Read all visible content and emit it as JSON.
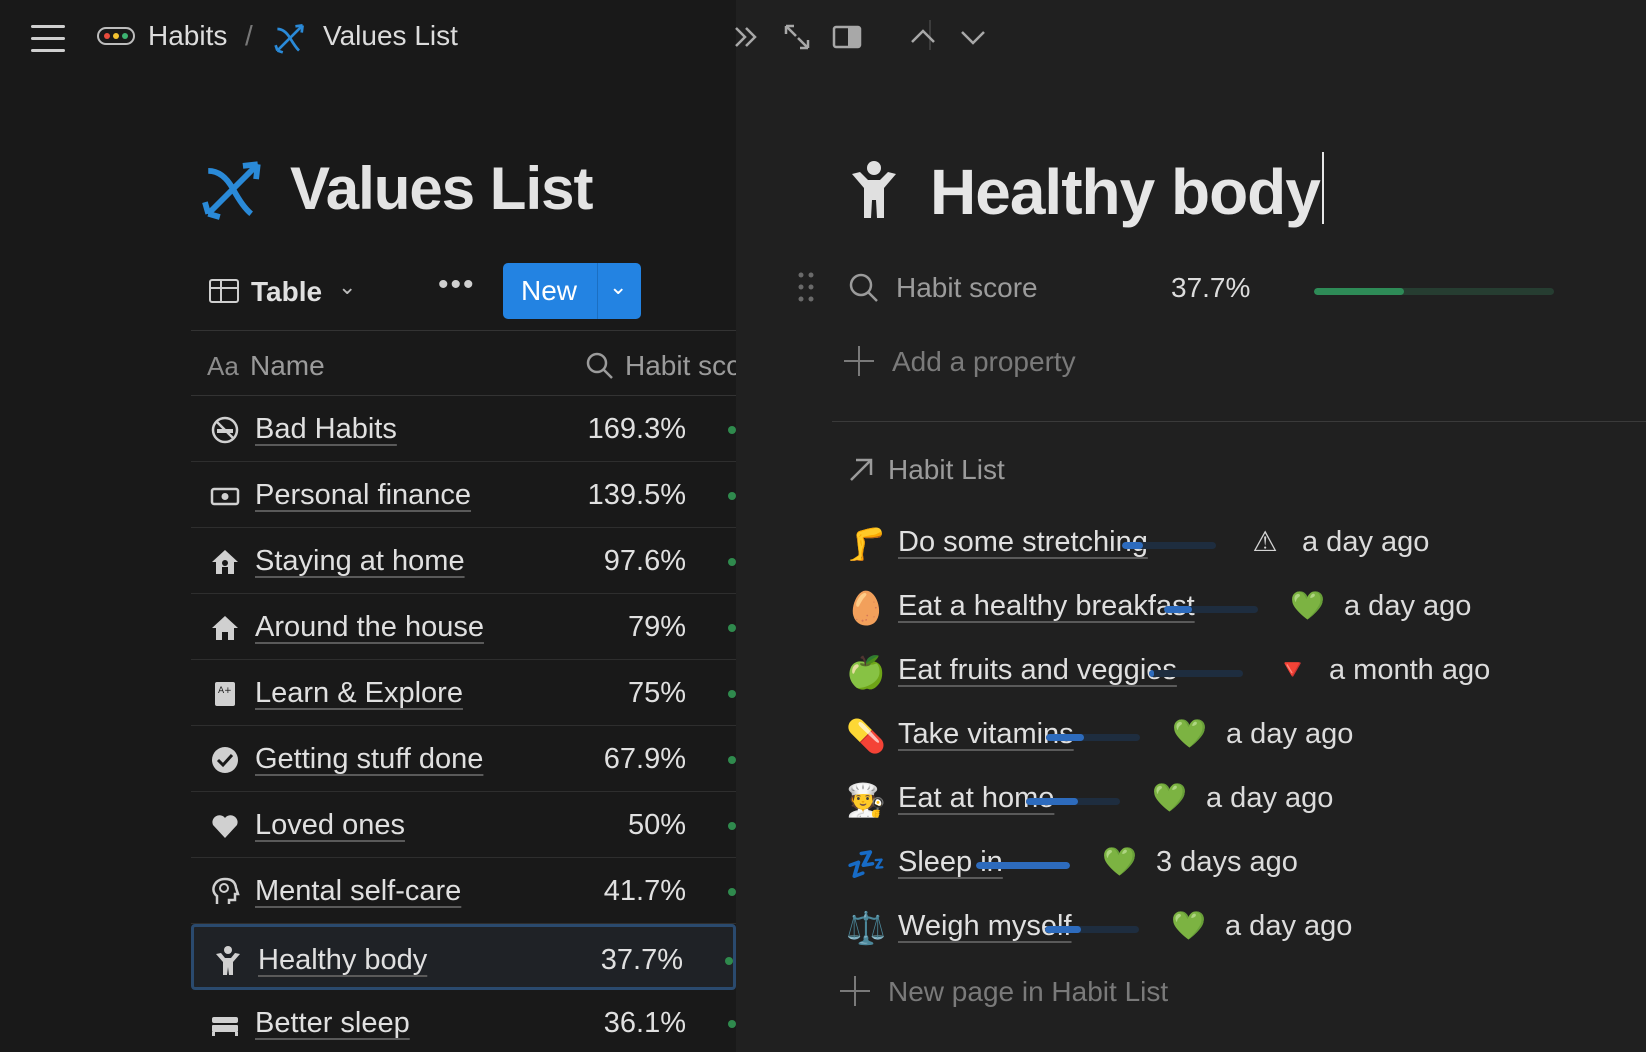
{
  "breadcrumb": {
    "parent": "Habits",
    "separator": "/",
    "current": "Values List"
  },
  "left_page": {
    "title": "Values List",
    "view": {
      "label": "Table",
      "more": "•••",
      "new_label": "New"
    },
    "columns": {
      "name_prefix": "Aa",
      "name": "Name",
      "score": "Habit score"
    },
    "rows": [
      {
        "icon": "no-smoking-icon",
        "name": "Bad Habits",
        "score": "169.3%"
      },
      {
        "icon": "banknote-icon",
        "name": "Personal finance",
        "score": "139.5%"
      },
      {
        "icon": "house-person-icon",
        "name": "Staying at home",
        "score": "97.6%"
      },
      {
        "icon": "house-icon",
        "name": "Around the house",
        "score": "79%"
      },
      {
        "icon": "study-book-icon",
        "name": "Learn & Explore",
        "score": "75%"
      },
      {
        "icon": "checkmark-circle-icon",
        "name": "Getting stuff done",
        "score": "67.9%"
      },
      {
        "icon": "heart-icon",
        "name": "Loved ones",
        "score": "50%"
      },
      {
        "icon": "head-mind-icon",
        "name": "Mental self-care",
        "score": "41.7%"
      },
      {
        "icon": "person-body-icon",
        "name": "Healthy body",
        "score": "37.7%",
        "selected": true
      },
      {
        "icon": "bed-icon",
        "name": "Better sleep",
        "score": "36.1%"
      }
    ]
  },
  "peek": {
    "title": "Healthy body",
    "property": {
      "label": "Habit score",
      "value": "37.7%",
      "progress": 0.377
    },
    "add_property": "Add a property",
    "relation_label": "Habit List",
    "habits": [
      {
        "emoji": "🦵",
        "name": "Do some stretching",
        "progress": 0.22,
        "status_icon": "warning-icon",
        "status": "⚠",
        "when": "a day ago"
      },
      {
        "emoji": "🥚",
        "name": "Eat a healthy breakfast",
        "progress": 0.3,
        "status_icon": "green-heart-icon",
        "status": "💚",
        "when": "a day ago"
      },
      {
        "emoji": "🍏",
        "name": "Eat fruits and veggies",
        "progress": 0.05,
        "status_icon": "red-triangle-down-icon",
        "status": "🔻",
        "when": "a month ago"
      },
      {
        "emoji": "💊",
        "name": "Take vitamins",
        "progress": 0.4,
        "status_icon": "green-heart-icon",
        "status": "💚",
        "when": "a day ago"
      },
      {
        "emoji": "🧑‍🍳",
        "name": "Eat at home",
        "progress": 0.55,
        "status_icon": "green-heart-icon",
        "status": "💚",
        "when": "a day ago"
      },
      {
        "emoji": "💤",
        "name": "Sleep in",
        "progress": 1.0,
        "status_icon": "green-heart-icon",
        "status": "💚",
        "when": "3 days ago"
      },
      {
        "emoji": "⚖️",
        "name": "Weigh myself",
        "progress": 0.38,
        "status_icon": "green-heart-icon",
        "status": "💚",
        "when": "a day ago"
      }
    ],
    "new_page": "New page in Habit List"
  },
  "colors": {
    "accent": "#2383e2",
    "score_bar": "#2e8b57",
    "habit_bar": "#2d6bbd"
  }
}
